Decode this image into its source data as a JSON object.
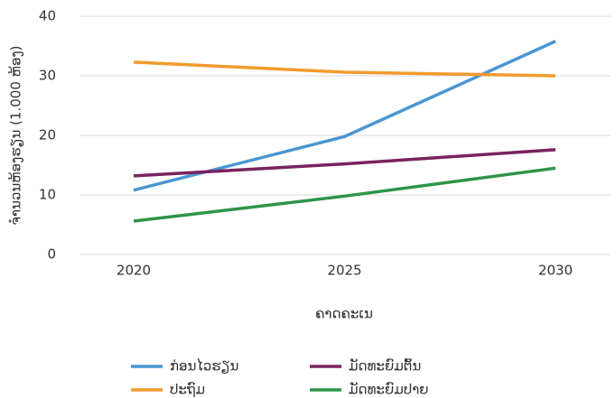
{
  "chart_data": {
    "type": "line",
    "xlabel": "ຄາດຄະເນ",
    "ylabel": "ຈຳນວນຫ້ອງຮຽນ (1.000 ຫ້ອງ)",
    "categories": [
      "2020",
      "2025",
      "2030"
    ],
    "series": [
      {
        "name": "ກ່ອນໄວຮຽນ",
        "color": "#4a96d2",
        "values": [
          10.8,
          19.8,
          35.8
        ]
      },
      {
        "name": "ປະຖົມ",
        "color": "#f29a2e",
        "values": [
          32.3,
          30.6,
          30
        ]
      },
      {
        "name": "ມັດທະຍົມຕົ້ນ",
        "color": "#7a2260",
        "values": [
          13.2,
          15.2,
          17.6
        ]
      },
      {
        "name": "ມັດທະຍົມປາຍ",
        "color": "#2e9447",
        "values": [
          5.6,
          9.8,
          14.5
        ]
      }
    ],
    "ylim": [
      0,
      40
    ],
    "yticks": [
      0,
      10,
      20,
      30,
      40
    ],
    "grid": true,
    "legend": "bottom"
  }
}
